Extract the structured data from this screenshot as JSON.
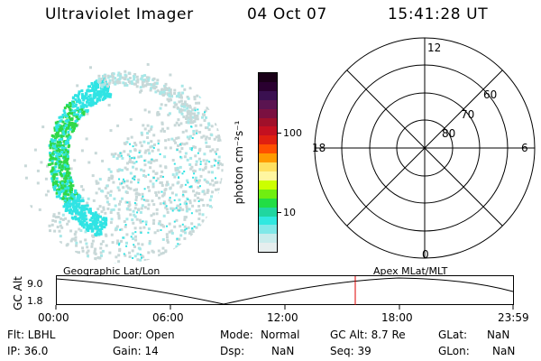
{
  "header": {
    "instrument": "Ultraviolet Imager",
    "date": "04 Oct 07",
    "time": "15:41:28 UT"
  },
  "colorbar": {
    "unit_label": "photon cm⁻²s⁻¹",
    "tick_labels": [
      "100",
      "10"
    ],
    "colors": [
      "#1a0018",
      "#2a0030",
      "#3a1050",
      "#5a1450",
      "#7a1040",
      "#a0102a",
      "#c41020",
      "#e02010",
      "#ff5000",
      "#ff9a00",
      "#ffe060",
      "#fff6a0",
      "#ccff00",
      "#70ee10",
      "#22dd44",
      "#20d6a0",
      "#30e8e0",
      "#80e8e8",
      "#c8ecec",
      "#e6eeee"
    ]
  },
  "polar_grid": {
    "mlt_labels": [
      "12",
      "18",
      "6",
      "0"
    ],
    "mlat_labels": [
      "60",
      "70",
      "80"
    ]
  },
  "timeline": {
    "left_label": "Geographic Lat/Lon",
    "right_label": "Apex MLat/MLT",
    "y_axis_label": "GC Alt",
    "y_ticks": [
      "9.0",
      "1.8"
    ],
    "x_ticks": [
      "00:00",
      "06:00",
      "12:00",
      "18:00",
      "23:59"
    ],
    "marker_color": "#dd0000"
  },
  "footer": {
    "filter": "Flt: LBHL",
    "ip": "IP: 36.0",
    "door": "Door: Open",
    "gain": "Gain: 14",
    "mode_label": "Mode:",
    "mode_value": "Normal",
    "dsp_label": "Dsp:",
    "dsp_value": "NaN",
    "gc_alt": "GC Alt: 8.7 Re",
    "seq": "Seq: 39",
    "glat_label": "GLat:",
    "glat_value": "NaN",
    "glon_label": "GLon:",
    "glon_value": "NaN"
  },
  "image_colors": {
    "faint": "#c8d8d8",
    "cyan": "#30e4e4",
    "green": "#30d848",
    "pale": "#a8e8e8"
  }
}
